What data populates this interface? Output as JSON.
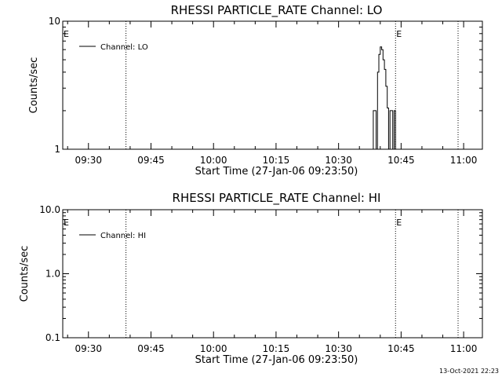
{
  "footer": {
    "timestamp": "13-Oct-2021 22:23"
  },
  "chart_data": [
    {
      "type": "line",
      "title": "RHESSI PARTICLE_RATE Channel: LO",
      "xlabel": "Start Time (27-Jan-06 09:23:50)",
      "ylabel": "Counts/sec",
      "yscale": "log",
      "ylim": [
        1,
        10
      ],
      "y_ticks": [
        {
          "value": 1,
          "label": "1"
        },
        {
          "value": 10,
          "label": "10"
        }
      ],
      "xlim": [
        "09:23:50",
        "11:04:30"
      ],
      "x_ticks": [
        {
          "value": "09:30",
          "label": "09:30"
        },
        {
          "value": "09:45",
          "label": "09:45"
        },
        {
          "value": "10:00",
          "label": "10:00"
        },
        {
          "value": "10:15",
          "label": "10:15"
        },
        {
          "value": "10:30",
          "label": "10:30"
        },
        {
          "value": "10:45",
          "label": "10:45"
        },
        {
          "value": "11:00",
          "label": "11:00"
        }
      ],
      "legend": {
        "position": "top-left",
        "entries": [
          "Channel: LO"
        ]
      },
      "eclipse_lines": [
        {
          "time": "09:39:00",
          "flag": ""
        },
        {
          "time": "10:43:40",
          "flag": "E"
        },
        {
          "time": "10:58:40",
          "flag": ""
        }
      ],
      "left_flag": "E",
      "series": [
        {
          "name": "Channel: LO",
          "x": [
            "10:38:00",
            "10:38:20",
            "10:38:40",
            "10:39:00",
            "10:39:20",
            "10:39:40",
            "10:40:00",
            "10:40:20",
            "10:40:40",
            "10:41:00",
            "10:41:20",
            "10:41:40",
            "10:42:00",
            "10:42:20",
            "10:42:40",
            "10:43:00",
            "10:43:20",
            "10:43:40",
            "10:44:00"
          ],
          "y": [
            1,
            2,
            2,
            1,
            4,
            5.5,
            6.3,
            6.0,
            5.0,
            4.2,
            3.1,
            2.1,
            1,
            2,
            2,
            1,
            2,
            1,
            1
          ]
        }
      ]
    },
    {
      "type": "line",
      "title": "RHESSI PARTICLE_RATE Channel: HI",
      "xlabel": "Start Time (27-Jan-06 09:23:50)",
      "ylabel": "Counts/sec",
      "yscale": "log",
      "ylim": [
        0.1,
        10
      ],
      "y_ticks": [
        {
          "value": 0.1,
          "label": "0.1"
        },
        {
          "value": 1,
          "label": "1.0"
        },
        {
          "value": 10,
          "label": "10.0"
        }
      ],
      "xlim": [
        "09:23:50",
        "11:04:30"
      ],
      "x_ticks": [
        {
          "value": "09:30",
          "label": "09:30"
        },
        {
          "value": "09:45",
          "label": "09:45"
        },
        {
          "value": "10:00",
          "label": "10:00"
        },
        {
          "value": "10:15",
          "label": "10:15"
        },
        {
          "value": "10:30",
          "label": "10:30"
        },
        {
          "value": "10:45",
          "label": "10:45"
        },
        {
          "value": "11:00",
          "label": "11:00"
        }
      ],
      "legend": {
        "position": "top-left",
        "entries": [
          "Channel: HI"
        ]
      },
      "eclipse_lines": [
        {
          "time": "09:39:00",
          "flag": ""
        },
        {
          "time": "10:43:40",
          "flag": "E"
        },
        {
          "time": "10:58:40",
          "flag": ""
        }
      ],
      "left_flag": "E",
      "series": [
        {
          "name": "Channel: HI",
          "x": [],
          "y": []
        }
      ]
    }
  ]
}
